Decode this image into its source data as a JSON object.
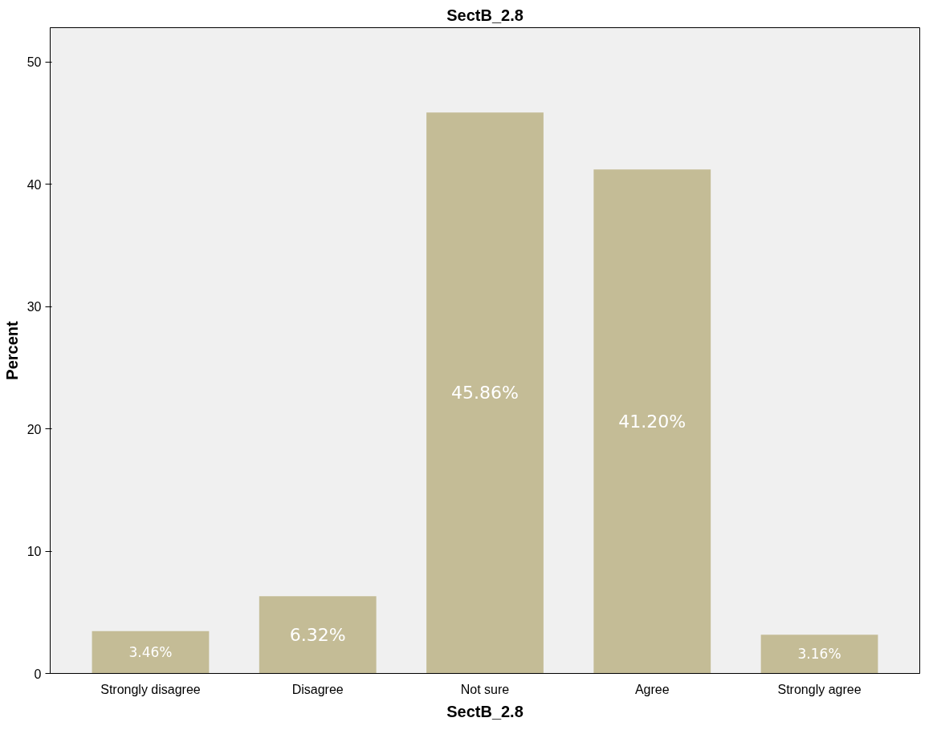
{
  "chart_data": {
    "type": "bar",
    "title": "SectB_2.8",
    "xlabel": "SectB_2.8",
    "ylabel": "Percent",
    "categories": [
      "Strongly disagree",
      "Disagree",
      "Not sure",
      "Agree",
      "Strongly agree"
    ],
    "values": [
      3.46,
      6.32,
      45.86,
      41.2,
      3.16
    ],
    "value_labels": [
      "3.46%",
      "6.32%",
      "45.86%",
      "41.20%",
      "3.16%"
    ],
    "color": "#c4bc96",
    "ylim": [
      0,
      52.8
    ],
    "yticks": [
      0,
      10,
      20,
      30,
      40,
      50
    ],
    "grid": false
  }
}
